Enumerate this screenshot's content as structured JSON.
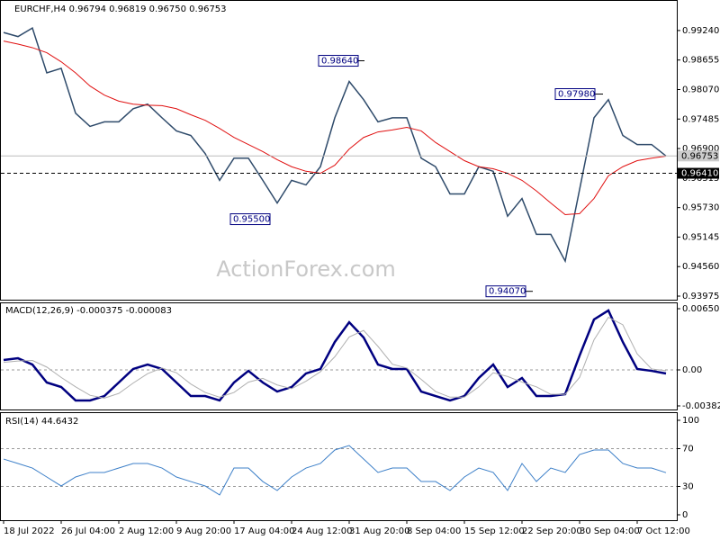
{
  "chart_data": [
    {
      "type": "line",
      "title": "EURCHF,H4  0.96794 0.96819 0.96750 0.96753",
      "watermark": "ActionForex.com",
      "categories": [
        "18 Jul 2022",
        null,
        null,
        null,
        "26 Jul 04:00",
        null,
        null,
        null,
        "2 Aug 12:00",
        null,
        null,
        null,
        "9 Aug 20:00",
        null,
        null,
        null,
        "17 Aug 04:00",
        null,
        null,
        null,
        "24 Aug 12:00",
        null,
        null,
        null,
        "31 Aug 20:00",
        null,
        null,
        null,
        "8 Sep 04:00",
        null,
        null,
        null,
        "15 Sep 12:00",
        null,
        null,
        null,
        "22 Sep 20:00",
        null,
        null,
        null,
        "30 Sep 04:00",
        null,
        null,
        null,
        "7 Oct 12:00",
        null,
        null
      ],
      "series": [
        {
          "name": "EURCHF",
          "color": "#2e4a6a",
          "values": [
            0.992,
            0.9912,
            0.9929,
            0.984,
            0.9849,
            0.976,
            0.9734,
            0.9743,
            0.9743,
            0.9769,
            0.9778,
            0.9751,
            0.9725,
            0.9716,
            0.968,
            0.9627,
            0.9671,
            0.9671,
            0.9627,
            0.9582,
            0.9627,
            0.9618,
            0.9654,
            0.9751,
            0.9823,
            0.9787,
            0.9743,
            0.9751,
            0.9751,
            0.9671,
            0.9654,
            0.96,
            0.96,
            0.9654,
            0.9645,
            0.9556,
            0.9591,
            0.952,
            0.952,
            0.9467,
            0.9609,
            0.9751,
            0.9787,
            0.9716,
            0.9698,
            0.9698,
            0.96753
          ]
        },
        {
          "name": "MA",
          "color": "#e01010",
          "values": [
            0.9903,
            0.9897,
            0.989,
            0.988,
            0.9862,
            0.984,
            0.9814,
            0.9796,
            0.9784,
            0.9778,
            0.9776,
            0.9775,
            0.9769,
            0.9757,
            0.9746,
            0.973,
            0.9712,
            0.9698,
            0.9684,
            0.9668,
            0.9654,
            0.9645,
            0.9641,
            0.9657,
            0.9689,
            0.9712,
            0.9723,
            0.9727,
            0.9732,
            0.9725,
            0.9702,
            0.9684,
            0.9666,
            0.9654,
            0.965,
            0.9641,
            0.9627,
            0.9606,
            0.9582,
            0.9559,
            0.9561,
            0.9591,
            0.9636,
            0.9654,
            0.9666,
            0.9671,
            0.9675
          ]
        }
      ],
      "annotations": [
        {
          "value": 0.9864,
          "label": "0.98640"
        },
        {
          "value": 0.9798,
          "label": "0.97980"
        },
        {
          "value": 0.955,
          "label": "0.95500"
        },
        {
          "value": 0.9407,
          "label": "0.94070"
        }
      ],
      "last": {
        "value": 0.96753,
        "label": "0.96753"
      },
      "level": {
        "value": 0.9641,
        "label": "0.96410"
      },
      "ylim": [
        0.93904,
        0.99827
      ],
      "yticks": [
        {
          "value": 0.9924,
          "label": "0.99240"
        },
        0.98655,
        {
          "value": 0.9807,
          "label": "0.98070"
        },
        0.97485,
        {
          "value": 0.969,
          "label": "0.96900"
        },
        0.96315,
        {
          "value": 0.9573,
          "label": "0.95730"
        },
        0.95145,
        {
          "value": 0.9456,
          "label": "0.94560"
        },
        0.93975
      ]
    },
    {
      "type": "line",
      "title": "MACD(12,26,9) -0.000375 -0.000083",
      "series": [
        {
          "name": "MACD",
          "color": "#000080",
          "values": [
            0.00105,
            0.00124,
            0.00057,
            -0.00134,
            -0.00182,
            -0.00325,
            -0.00325,
            -0.00278,
            -0.00134,
            0.0001,
            0.00057,
            0.0001,
            -0.00134,
            -0.00278,
            -0.00278,
            -0.00325,
            -0.00134,
            -0.0001,
            -0.00134,
            -0.0023,
            -0.00182,
            -0.00038,
            0.0001,
            0.00297,
            0.00507,
            0.00345,
            0.00057,
            0.0001,
            0.0001,
            -0.0023,
            -0.00278,
            -0.00325,
            -0.00278,
            -0.00086,
            0.00057,
            -0.00182,
            -0.00086,
            -0.00278,
            -0.00278,
            -0.00258,
            0.00153,
            0.00536,
            0.00632,
            0.00297,
            0.0001,
            -0.0001,
            -0.00038
          ]
        },
        {
          "name": "Signal",
          "color": "#b0b0b0",
          "values": [
            0.0008,
            0.00095,
            0.001,
            0.0003,
            -0.0008,
            -0.0018,
            -0.0027,
            -0.003,
            -0.0025,
            -0.0014,
            -0.0004,
            0.0002,
            -0.0003,
            -0.0015,
            -0.0024,
            -0.0029,
            -0.0024,
            -0.0013,
            -0.0009,
            -0.0016,
            -0.002,
            -0.0012,
            -0.0002,
            0.0014,
            0.0035,
            0.0042,
            0.0025,
            0.0006,
            0.0002,
            -0.001,
            -0.0023,
            -0.0029,
            -0.0029,
            -0.0018,
            -0.0003,
            -0.0007,
            -0.0013,
            -0.0018,
            -0.0026,
            -0.0026,
            -0.0008,
            0.0032,
            0.0056,
            0.0048,
            0.0017,
            0.0001,
            -8e-05
          ]
        }
      ],
      "ylim": [
        -0.004211,
        0.007083
      ],
      "yticks": [
        0.006509,
        {
          "value": 0,
          "label": "0.00"
        },
        -0.003828
      ]
    },
    {
      "type": "line",
      "title": "RSI(14) 44.6432",
      "series": [
        {
          "name": "RSI",
          "color": "#3c7fc8",
          "values": [
            59.0,
            54.3,
            49.5,
            40.0,
            30.5,
            40.0,
            44.8,
            44.8,
            49.5,
            54.3,
            54.3,
            49.5,
            40.0,
            35.2,
            30.5,
            21.0,
            49.5,
            49.5,
            35.2,
            25.7,
            40.0,
            49.5,
            54.3,
            68.6,
            73.3,
            59.0,
            44.8,
            49.5,
            49.5,
            35.2,
            35.2,
            25.7,
            40.0,
            49.5,
            44.8,
            25.7,
            54.3,
            35.2,
            49.5,
            44.8,
            63.8,
            68.6,
            68.6,
            54.3,
            49.5,
            49.5,
            44.6
          ]
        }
      ],
      "ylim": [
        -5.7,
        107.6
      ],
      "yticks": [
        100,
        70,
        30,
        0
      ]
    }
  ]
}
